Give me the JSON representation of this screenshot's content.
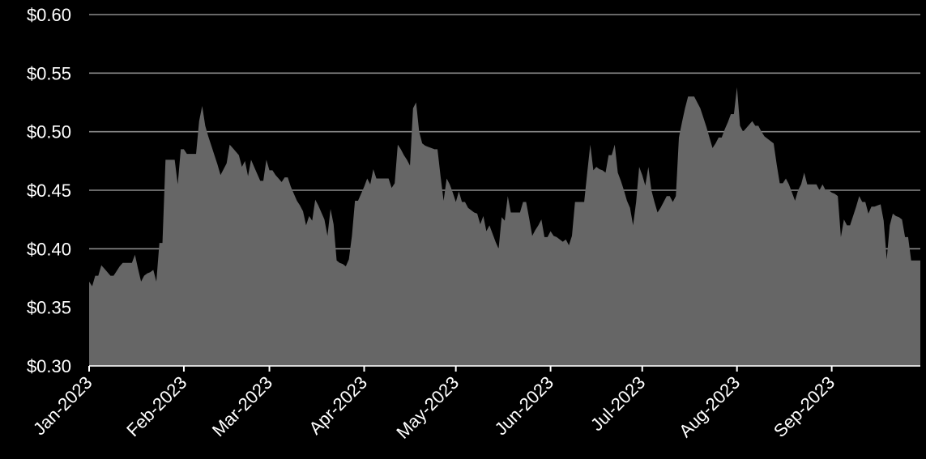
{
  "chart_data": {
    "type": "area",
    "title": "",
    "xlabel": "",
    "ylabel": "",
    "ylim": [
      0.3,
      0.6
    ],
    "xlim": [
      "2023-01-01",
      "2023-09-30"
    ],
    "y_ticks": [
      {
        "value": 0.3,
        "label": "$0.30"
      },
      {
        "value": 0.35,
        "label": "$0.35"
      },
      {
        "value": 0.4,
        "label": "$0.40"
      },
      {
        "value": 0.45,
        "label": "$0.45"
      },
      {
        "value": 0.5,
        "label": "$0.50"
      },
      {
        "value": 0.55,
        "label": "$0.55"
      },
      {
        "value": 0.6,
        "label": "$0.60"
      }
    ],
    "x_ticks": [
      {
        "value": "2023-01-01",
        "label": "Jan-2023"
      },
      {
        "value": "2023-02-01",
        "label": "Feb-2023"
      },
      {
        "value": "2023-03-01",
        "label": "Mar-2023"
      },
      {
        "value": "2023-04-01",
        "label": "Apr-2023"
      },
      {
        "value": "2023-05-01",
        "label": "May-2023"
      },
      {
        "value": "2023-06-01",
        "label": "Jun-2023"
      },
      {
        "value": "2023-07-01",
        "label": "Jul-2023"
      },
      {
        "value": "2023-08-01",
        "label": "Aug-2023"
      },
      {
        "value": "2023-09-01",
        "label": "Sep-2023"
      }
    ],
    "grid": true,
    "colors": {
      "background": "#000000",
      "area": "#666666",
      "grid": "#8a8a8a",
      "text": "#ffffff"
    },
    "series": [
      {
        "x": [
          "2023-01-01",
          "2023-01-02",
          "2023-01-03",
          "2023-01-04",
          "2023-01-05",
          "2023-01-06",
          "2023-01-07",
          "2023-01-08",
          "2023-01-09",
          "2023-01-10",
          "2023-01-11",
          "2023-01-12",
          "2023-01-13",
          "2023-01-14",
          "2023-01-15",
          "2023-01-16",
          "2023-01-17",
          "2023-01-18",
          "2023-01-19",
          "2023-01-20",
          "2023-01-21",
          "2023-01-22",
          "2023-01-23",
          "2023-01-24",
          "2023-01-25",
          "2023-01-26",
          "2023-01-27",
          "2023-01-28",
          "2023-01-29",
          "2023-01-30",
          "2023-01-31",
          "2023-02-01",
          "2023-02-02",
          "2023-02-03",
          "2023-02-04",
          "2023-02-05",
          "2023-02-06",
          "2023-02-07",
          "2023-02-08",
          "2023-02-09",
          "2023-02-10",
          "2023-02-11",
          "2023-02-12",
          "2023-02-13",
          "2023-02-14",
          "2023-02-15",
          "2023-02-16",
          "2023-02-17",
          "2023-02-18",
          "2023-02-19",
          "2023-02-20",
          "2023-02-21",
          "2023-02-22",
          "2023-02-23",
          "2023-02-24",
          "2023-02-25",
          "2023-02-26",
          "2023-02-27",
          "2023-02-28",
          "2023-03-01",
          "2023-03-02",
          "2023-03-03",
          "2023-03-04",
          "2023-03-05",
          "2023-03-06",
          "2023-03-07",
          "2023-03-08",
          "2023-03-09",
          "2023-03-10",
          "2023-03-11",
          "2023-03-12",
          "2023-03-13",
          "2023-03-14",
          "2023-03-15",
          "2023-03-16",
          "2023-03-17",
          "2023-03-18",
          "2023-03-19",
          "2023-03-20",
          "2023-03-21",
          "2023-03-22",
          "2023-03-23",
          "2023-03-24",
          "2023-03-25",
          "2023-03-26",
          "2023-03-27",
          "2023-03-28",
          "2023-03-29",
          "2023-03-30",
          "2023-03-31",
          "2023-04-01",
          "2023-04-02",
          "2023-04-03",
          "2023-04-04",
          "2023-04-05",
          "2023-04-06",
          "2023-04-07",
          "2023-04-08",
          "2023-04-09",
          "2023-04-10",
          "2023-04-11",
          "2023-04-12",
          "2023-04-13",
          "2023-04-14",
          "2023-04-15",
          "2023-04-16",
          "2023-04-17",
          "2023-04-18",
          "2023-04-19",
          "2023-04-20",
          "2023-04-21",
          "2023-04-22",
          "2023-04-23",
          "2023-04-24",
          "2023-04-25",
          "2023-04-26",
          "2023-04-27",
          "2023-04-28",
          "2023-04-29",
          "2023-04-30",
          "2023-05-01",
          "2023-05-02",
          "2023-05-03",
          "2023-05-04",
          "2023-05-05",
          "2023-05-06",
          "2023-05-07",
          "2023-05-08",
          "2023-05-09",
          "2023-05-10",
          "2023-05-11",
          "2023-05-12",
          "2023-05-13",
          "2023-05-14",
          "2023-05-15",
          "2023-05-16",
          "2023-05-17",
          "2023-05-18",
          "2023-05-19",
          "2023-05-20",
          "2023-05-21",
          "2023-05-22",
          "2023-05-23",
          "2023-05-24",
          "2023-05-25",
          "2023-05-26",
          "2023-05-27",
          "2023-05-28",
          "2023-05-29",
          "2023-05-30",
          "2023-05-31",
          "2023-06-01",
          "2023-06-02",
          "2023-06-03",
          "2023-06-04",
          "2023-06-05",
          "2023-06-06",
          "2023-06-07",
          "2023-06-08",
          "2023-06-09",
          "2023-06-10",
          "2023-06-11",
          "2023-06-12",
          "2023-06-13",
          "2023-06-14",
          "2023-06-15",
          "2023-06-16",
          "2023-06-17",
          "2023-06-18",
          "2023-06-19",
          "2023-06-20",
          "2023-06-21",
          "2023-06-22",
          "2023-06-23",
          "2023-06-24",
          "2023-06-25",
          "2023-06-26",
          "2023-06-27",
          "2023-06-28",
          "2023-06-29",
          "2023-06-30",
          "2023-07-01",
          "2023-07-02",
          "2023-07-03",
          "2023-07-04",
          "2023-07-05",
          "2023-07-06",
          "2023-07-07",
          "2023-07-08",
          "2023-07-09",
          "2023-07-10",
          "2023-07-11",
          "2023-07-12",
          "2023-07-13",
          "2023-07-14",
          "2023-07-15",
          "2023-07-16",
          "2023-07-17",
          "2023-07-18",
          "2023-07-19",
          "2023-07-20",
          "2023-07-21",
          "2023-07-22",
          "2023-07-23",
          "2023-07-24",
          "2023-07-25",
          "2023-07-26",
          "2023-07-27",
          "2023-07-28",
          "2023-07-29",
          "2023-07-30",
          "2023-07-31",
          "2023-08-01",
          "2023-08-02",
          "2023-08-03",
          "2023-08-04",
          "2023-08-05",
          "2023-08-06",
          "2023-08-07",
          "2023-08-08",
          "2023-08-09",
          "2023-08-10",
          "2023-08-11",
          "2023-08-12",
          "2023-08-13",
          "2023-08-14",
          "2023-08-15",
          "2023-08-16",
          "2023-08-17",
          "2023-08-18",
          "2023-08-19",
          "2023-08-20",
          "2023-08-21",
          "2023-08-22",
          "2023-08-23",
          "2023-08-24",
          "2023-08-25",
          "2023-08-26",
          "2023-08-27",
          "2023-08-28",
          "2023-08-29",
          "2023-08-30",
          "2023-08-31",
          "2023-09-01",
          "2023-09-02",
          "2023-09-03",
          "2023-09-04",
          "2023-09-05",
          "2023-09-06",
          "2023-09-07",
          "2023-09-08",
          "2023-09-09",
          "2023-09-10",
          "2023-09-11",
          "2023-09-12",
          "2023-09-13",
          "2023-09-14",
          "2023-09-15",
          "2023-09-16",
          "2023-09-17",
          "2023-09-18",
          "2023-09-19",
          "2023-09-20",
          "2023-09-21",
          "2023-09-22",
          "2023-09-23",
          "2023-09-24",
          "2023-09-25",
          "2023-09-26",
          "2023-09-27",
          "2023-09-28",
          "2023-09-29",
          "2023-09-30"
        ],
        "y": [
          0.372,
          0.368,
          0.377,
          0.377,
          0.386,
          0.383,
          0.38,
          0.377,
          0.377,
          0.381,
          0.385,
          0.388,
          0.388,
          0.388,
          0.388,
          0.395,
          0.383,
          0.372,
          0.377,
          0.379,
          0.38,
          0.382,
          0.372,
          0.405,
          0.405,
          0.476,
          0.476,
          0.476,
          0.476,
          0.455,
          0.485,
          0.485,
          0.481,
          0.481,
          0.481,
          0.481,
          0.509,
          0.522,
          0.505,
          0.496,
          0.488,
          0.48,
          0.472,
          0.463,
          0.468,
          0.473,
          0.489,
          0.486,
          0.483,
          0.48,
          0.47,
          0.475,
          0.462,
          0.476,
          0.47,
          0.464,
          0.458,
          0.458,
          0.476,
          0.467,
          0.467,
          0.463,
          0.46,
          0.457,
          0.461,
          0.461,
          0.453,
          0.447,
          0.441,
          0.437,
          0.432,
          0.42,
          0.428,
          0.424,
          0.442,
          0.437,
          0.431,
          0.425,
          0.411,
          0.434,
          0.421,
          0.39,
          0.388,
          0.387,
          0.385,
          0.391,
          0.411,
          0.441,
          0.441,
          0.447,
          0.453,
          0.46,
          0.455,
          0.468,
          0.46,
          0.46,
          0.46,
          0.46,
          0.46,
          0.452,
          0.456,
          0.489,
          0.485,
          0.48,
          0.476,
          0.471,
          0.52,
          0.525,
          0.5,
          0.49,
          0.488,
          0.487,
          0.486,
          0.485,
          0.485,
          0.462,
          0.441,
          0.46,
          0.455,
          0.448,
          0.44,
          0.449,
          0.44,
          0.44,
          0.435,
          0.433,
          0.431,
          0.43,
          0.421,
          0.428,
          0.415,
          0.42,
          0.413,
          0.406,
          0.4,
          0.427,
          0.424,
          0.445,
          0.431,
          0.431,
          0.431,
          0.431,
          0.44,
          0.44,
          0.426,
          0.411,
          0.416,
          0.42,
          0.425,
          0.41,
          0.41,
          0.415,
          0.411,
          0.41,
          0.408,
          0.406,
          0.408,
          0.403,
          0.411,
          0.44,
          0.44,
          0.44,
          0.44,
          0.465,
          0.489,
          0.467,
          0.47,
          0.468,
          0.467,
          0.465,
          0.48,
          0.48,
          0.489,
          0.465,
          0.458,
          0.45,
          0.441,
          0.435,
          0.42,
          0.44,
          0.47,
          0.463,
          0.454,
          0.47,
          0.45,
          0.44,
          0.431,
          0.435,
          0.44,
          0.445,
          0.445,
          0.44,
          0.445,
          0.495,
          0.508,
          0.52,
          0.53,
          0.53,
          0.53,
          0.525,
          0.52,
          0.512,
          0.504,
          0.495,
          0.486,
          0.49,
          0.495,
          0.495,
          0.502,
          0.508,
          0.515,
          0.515,
          0.538,
          0.505,
          0.5,
          0.503,
          0.506,
          0.509,
          0.505,
          0.505,
          0.5,
          0.496,
          0.494,
          0.492,
          0.49,
          0.472,
          0.456,
          0.456,
          0.46,
          0.455,
          0.448,
          0.441,
          0.45,
          0.455,
          0.465,
          0.455,
          0.455,
          0.455,
          0.455,
          0.45,
          0.455,
          0.45,
          0.45,
          0.448,
          0.447,
          0.445,
          0.41,
          0.425,
          0.42,
          0.42,
          0.428,
          0.436,
          0.445,
          0.44,
          0.44,
          0.43,
          0.436,
          0.436,
          0.437,
          0.438,
          0.424,
          0.391,
          0.42,
          0.43,
          0.428,
          0.427,
          0.425,
          0.41,
          0.41,
          0.39,
          0.39,
          0.39,
          0.39
        ]
      }
    ]
  }
}
